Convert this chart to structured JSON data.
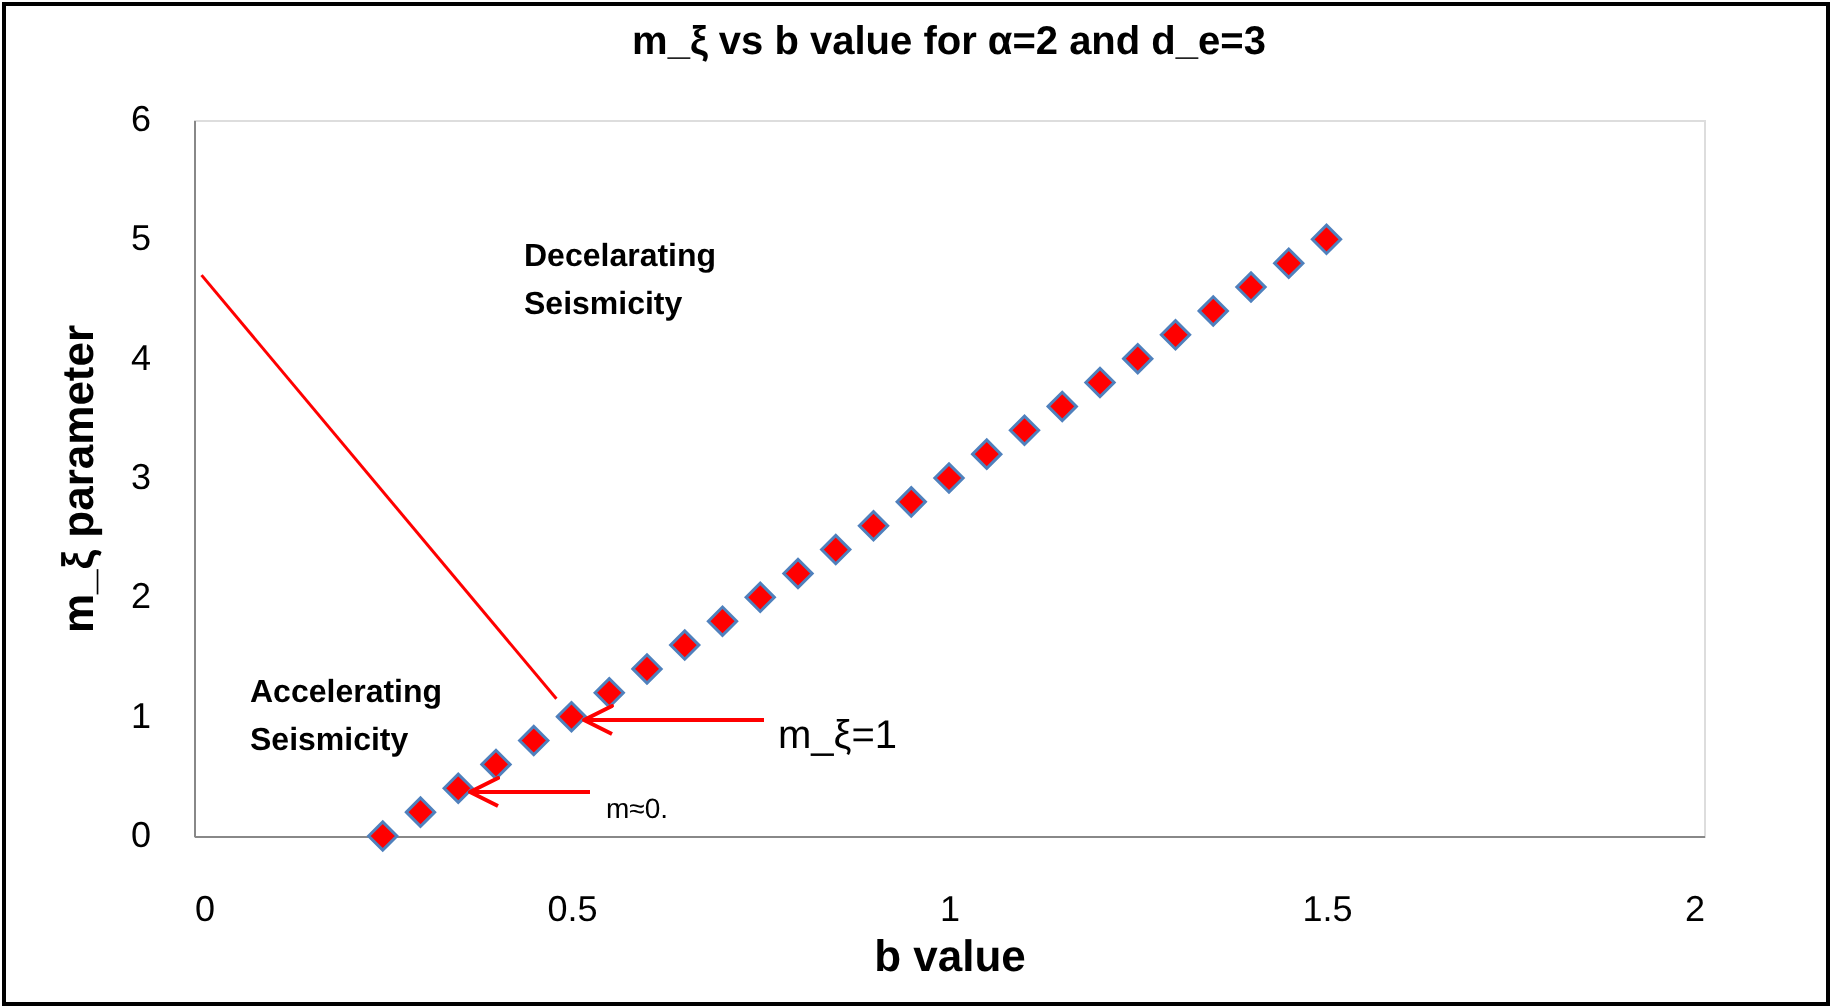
{
  "chart_data": {
    "type": "scatter",
    "title": "m_ξ vs b value for α=2 and d_e=3",
    "xlabel": "b value",
    "ylabel": "m_ξ parameter",
    "x": [
      0.25,
      0.3,
      0.35,
      0.4,
      0.45,
      0.5,
      0.55,
      0.6,
      0.65,
      0.7,
      0.75,
      0.8,
      0.85,
      0.9,
      0.95,
      1.0,
      1.05,
      1.1,
      1.15,
      1.2,
      1.25,
      1.3,
      1.35,
      1.4,
      1.45,
      1.5
    ],
    "series": [
      {
        "type": "line",
        "color": "#ff0000",
        "marker": "none",
        "x": [
          0.01,
          0.48
        ],
        "values": [
          4.7,
          1.15
        ]
      },
      {
        "color": "#ff0000",
        "values": [
          0,
          0.2,
          0.4,
          0.6,
          0.8,
          1.0,
          1.2,
          1.4,
          1.6,
          1.8,
          2.0,
          2.2,
          2.4,
          2.6,
          2.8,
          3.0,
          3.2,
          3.4,
          3.6,
          3.8,
          4.0,
          4.2,
          4.4,
          4.6,
          4.8,
          5.0
        ]
      }
    ],
    "marker": "diamond",
    "xlim": [
      0,
      2
    ],
    "xticks": [
      0,
      0.5,
      1,
      1.5,
      2
    ],
    "ylim": [
      0,
      6
    ],
    "yticks": [
      0,
      1,
      2,
      3,
      4,
      5,
      6
    ],
    "grid": false,
    "legend": false,
    "annotations": [
      "Decelarating\nSeismicity",
      "Accelerating\nSeismicity",
      "m_ξ=1",
      "m≈0."
    ]
  }
}
